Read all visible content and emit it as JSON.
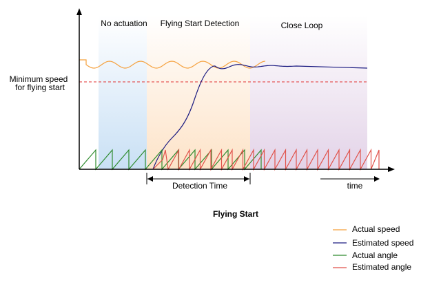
{
  "regions": {
    "no_actuation": "No actuation",
    "flying_start_detection": "Flying Start Detection",
    "close_loop": "Close Loop"
  },
  "labels": {
    "min_speed_line1": "Minimum speed",
    "min_speed_line2": "for flying start",
    "detection_time": "Detection Time",
    "time": "time",
    "title": "Flying Start"
  },
  "legend": [
    {
      "label": "Actual speed",
      "color": "#f5a03c"
    },
    {
      "label": "Estimated speed",
      "color": "#1a1a80"
    },
    {
      "label": "Actual angle",
      "color": "#2e8b2e"
    },
    {
      "label": "Estimated angle",
      "color": "#e0524a"
    }
  ],
  "colors": {
    "no_actuation_fill": "#c9e0f5",
    "detection_fill": "#fde3c8",
    "close_loop_fill": "#e3d3e8",
    "threshold": "#e03030"
  }
}
